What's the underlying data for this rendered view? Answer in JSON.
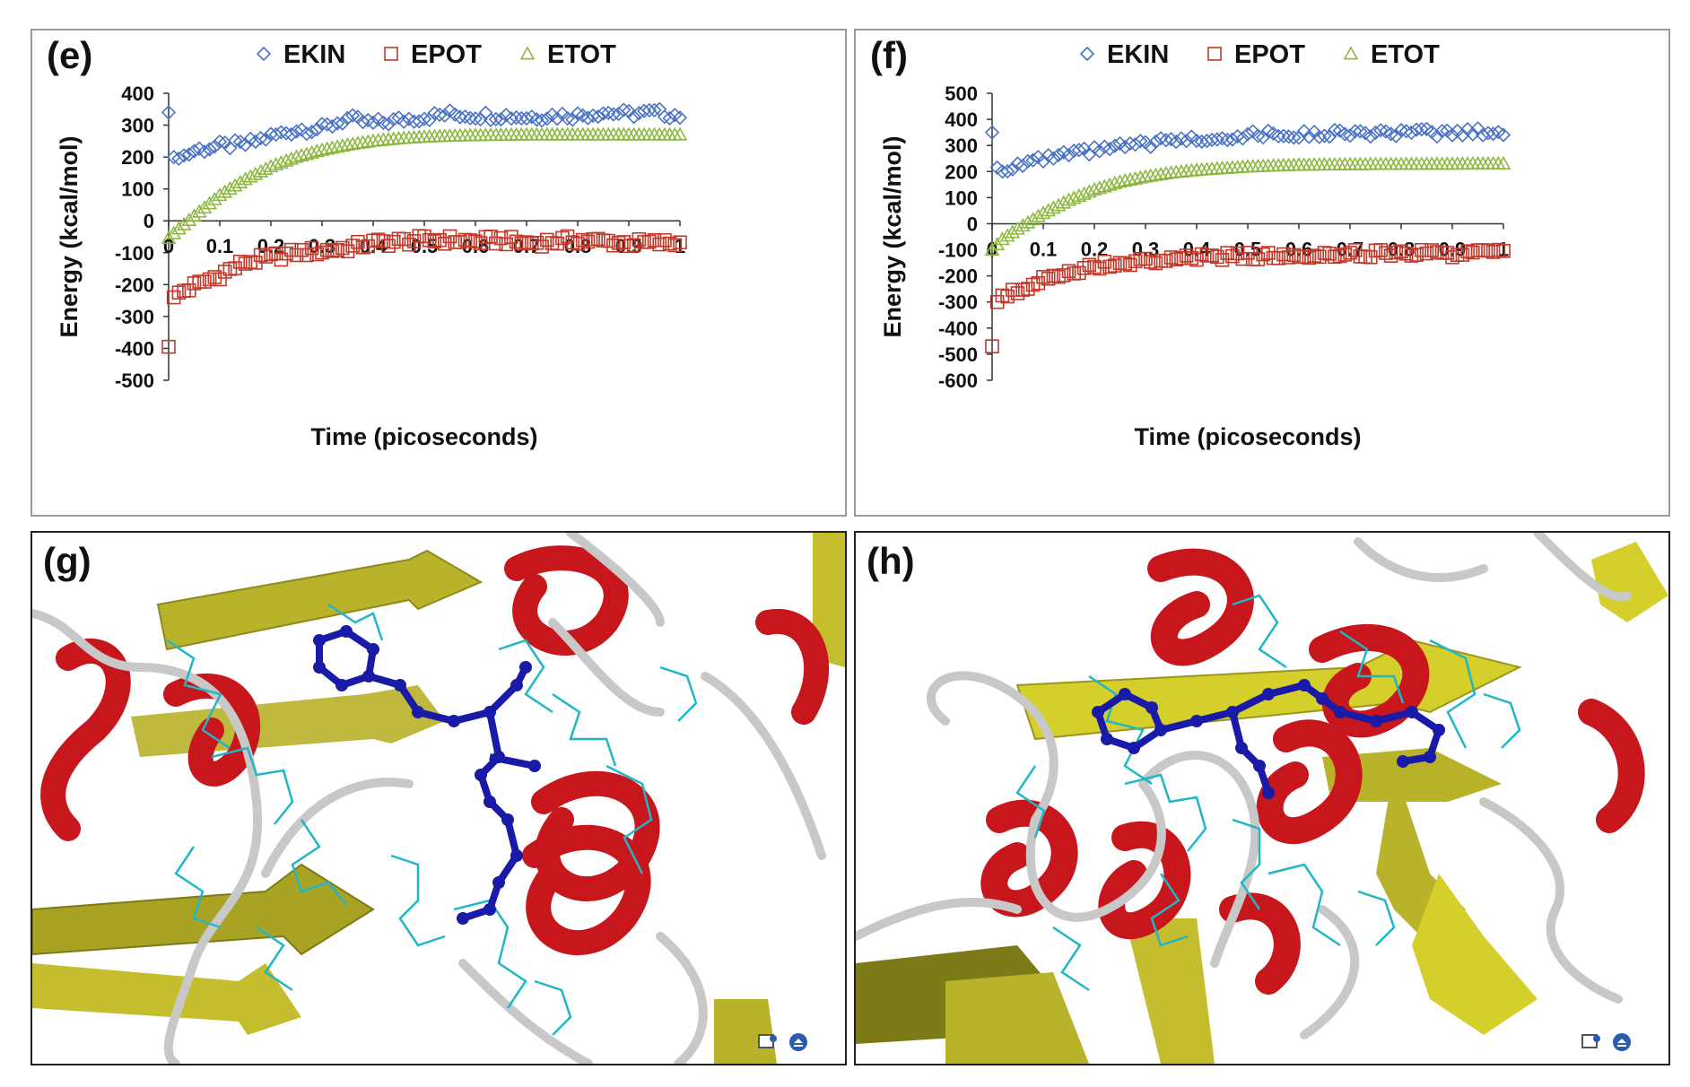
{
  "panels": [
    {
      "id": "e",
      "label": "(e)"
    },
    {
      "id": "f",
      "label": "(f)"
    },
    {
      "id": "g",
      "label": "(g)"
    },
    {
      "id": "h",
      "label": "(h)"
    }
  ],
  "chart_data": [
    {
      "panel": "(e)",
      "type": "scatter",
      "xlabel": "Time (picoseconds)",
      "ylabel": "Energy (kcal/mol)",
      "xlim": [
        0,
        1
      ],
      "ylim": [
        -500,
        400
      ],
      "xticks": [
        0,
        0.1,
        0.2,
        0.3,
        0.4,
        0.5,
        0.6,
        0.7,
        0.8,
        0.9,
        1
      ],
      "yticks": [
        400,
        300,
        200,
        100,
        0,
        -100,
        -200,
        -300,
        -400,
        -500
      ],
      "legend_position": "top",
      "grid": false,
      "series": [
        {
          "name": "EKIN",
          "marker": "diamond",
          "color": "#4a72c4",
          "x": [
            0,
            0.01,
            0.02,
            0.05,
            0.1,
            0.15,
            0.2,
            0.25,
            0.3,
            0.35,
            0.4,
            0.45,
            0.5,
            0.55,
            0.6,
            0.65,
            0.7,
            0.75,
            0.8,
            0.85,
            0.9,
            0.95,
            1
          ],
          "y": [
            340,
            200,
            195,
            220,
            235,
            240,
            265,
            285,
            290,
            320,
            305,
            315,
            325,
            335,
            330,
            330,
            325,
            330,
            330,
            340,
            335,
            340,
            330
          ]
        },
        {
          "name": "EPOT",
          "marker": "square",
          "color": "#c0392b",
          "x": [
            0,
            0.01,
            0.02,
            0.05,
            0.1,
            0.15,
            0.2,
            0.25,
            0.3,
            0.35,
            0.4,
            0.45,
            0.5,
            0.55,
            0.6,
            0.65,
            0.7,
            0.75,
            0.8,
            0.85,
            0.9,
            0.95,
            1
          ],
          "y": [
            -395,
            -240,
            -225,
            -205,
            -170,
            -130,
            -115,
            -100,
            -95,
            -85,
            -70,
            -65,
            -60,
            -60,
            -65,
            -60,
            -70,
            -65,
            -60,
            -65,
            -70,
            -70,
            -70
          ]
        },
        {
          "name": "ETOT",
          "marker": "triangle",
          "color": "#8db840",
          "x": [
            0,
            0.01,
            0.02,
            0.05,
            0.1,
            0.15,
            0.2,
            0.25,
            0.3,
            0.35,
            0.4,
            0.45,
            0.5,
            0.55,
            0.6,
            0.65,
            0.7,
            0.75,
            0.8,
            0.85,
            0.9,
            0.95,
            1
          ],
          "y": [
            -55,
            -40,
            -25,
            15,
            80,
            130,
            170,
            200,
            222,
            238,
            250,
            258,
            263,
            266,
            268,
            269,
            270,
            270,
            270,
            270,
            270,
            270,
            270
          ]
        }
      ]
    },
    {
      "panel": "(f)",
      "type": "scatter",
      "xlabel": "Time (picoseconds)",
      "ylabel": "Energy (kcal/mol)",
      "xlim": [
        0,
        1
      ],
      "ylim": [
        -600,
        500
      ],
      "xticks": [
        0,
        0.1,
        0.2,
        0.3,
        0.4,
        0.5,
        0.6,
        0.7,
        0.8,
        0.9,
        1
      ],
      "yticks": [
        500,
        400,
        300,
        200,
        100,
        0,
        -100,
        -200,
        -300,
        -400,
        -500,
        -600
      ],
      "legend_position": "top",
      "grid": false,
      "series": [
        {
          "name": "EKIN",
          "marker": "diamond",
          "color": "#4a72c4",
          "x": [
            0,
            0.01,
            0.02,
            0.05,
            0.1,
            0.15,
            0.2,
            0.25,
            0.3,
            0.35,
            0.4,
            0.45,
            0.5,
            0.55,
            0.6,
            0.65,
            0.7,
            0.75,
            0.8,
            0.85,
            0.9,
            0.95,
            1
          ],
          "y": [
            350,
            215,
            200,
            230,
            245,
            265,
            280,
            295,
            305,
            320,
            325,
            330,
            340,
            345,
            340,
            345,
            350,
            345,
            345,
            350,
            345,
            355,
            345
          ]
        },
        {
          "name": "EPOT",
          "marker": "square",
          "color": "#c0392b",
          "x": [
            0,
            0.01,
            0.02,
            0.05,
            0.1,
            0.15,
            0.2,
            0.25,
            0.3,
            0.35,
            0.4,
            0.45,
            0.5,
            0.55,
            0.6,
            0.65,
            0.7,
            0.75,
            0.8,
            0.85,
            0.9,
            0.95,
            1
          ],
          "y": [
            -470,
            -300,
            -275,
            -255,
            -210,
            -185,
            -160,
            -150,
            -145,
            -140,
            -130,
            -125,
            -125,
            -120,
            -120,
            -115,
            -115,
            -115,
            -110,
            -115,
            -115,
            -110,
            -110
          ]
        },
        {
          "name": "ETOT",
          "marker": "triangle",
          "color": "#8db840",
          "x": [
            0,
            0.01,
            0.02,
            0.05,
            0.1,
            0.15,
            0.2,
            0.25,
            0.3,
            0.35,
            0.4,
            0.45,
            0.5,
            0.55,
            0.6,
            0.65,
            0.7,
            0.75,
            0.8,
            0.85,
            0.9,
            0.95,
            1
          ],
          "y": [
            -100,
            -80,
            -60,
            -20,
            40,
            90,
            130,
            160,
            180,
            195,
            205,
            212,
            218,
            222,
            225,
            226,
            227,
            228,
            228,
            229,
            229,
            230,
            230
          ]
        }
      ]
    }
  ],
  "molecule_views": [
    {
      "panel": "(g)",
      "description_icons": [
        "viewer-icon",
        "clip-icon"
      ]
    },
    {
      "panel": "(h)",
      "description_icons": [
        "viewer-icon",
        "clip-icon"
      ]
    }
  ],
  "colors": {
    "helix": "#c8161d",
    "sheet": "#b8b32a",
    "coil": "#c8c8c8",
    "residue": "#20b6c6",
    "ligand": "#1a1aa8"
  }
}
